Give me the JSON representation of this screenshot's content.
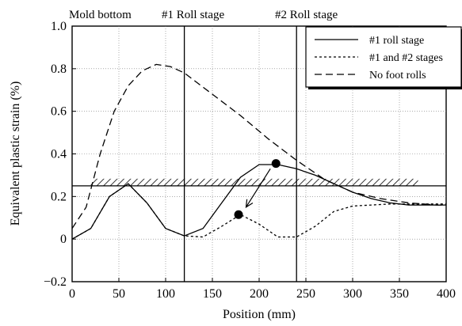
{
  "chart_data": {
    "type": "line",
    "xlabel": "Position (mm)",
    "ylabel": "Equivalent plastic strain (%)",
    "xlim": [
      0,
      400
    ],
    "ylim": [
      -0.2,
      1.0
    ],
    "x_ticks": [
      0,
      50,
      100,
      150,
      200,
      250,
      300,
      350,
      400
    ],
    "y_ticks": [
      -0.2,
      0,
      0.2,
      0.4,
      0.6,
      0.8,
      1.0
    ],
    "x_tick_labels": [
      "0",
      "50",
      "100",
      "150",
      "200",
      "250",
      "300",
      "350",
      "400"
    ],
    "y_tick_labels": [
      "−0.2",
      "0",
      "0.2",
      "0.4",
      "0.6",
      "0.8",
      "1.0"
    ],
    "grid": true,
    "legend_position": "top-right",
    "stage_markers": [
      {
        "label": "Mold bottom",
        "x": null
      },
      {
        "label": "#1 Roll stage",
        "x": 120
      },
      {
        "label": "#2 Roll stage",
        "x": 240
      }
    ],
    "threshold": {
      "y": 0.25,
      "x_range": [
        20,
        370
      ]
    },
    "series": [
      {
        "name": "#1 roll stage",
        "style": "solid",
        "x": [
          0,
          20,
          40,
          60,
          80,
          100,
          120,
          140,
          160,
          180,
          200,
          220,
          240,
          260,
          280,
          300,
          320,
          340,
          360,
          380,
          400
        ],
        "y": [
          0,
          0.05,
          0.2,
          0.26,
          0.17,
          0.05,
          0.015,
          0.05,
          0.17,
          0.29,
          0.35,
          0.35,
          0.33,
          0.3,
          0.26,
          0.22,
          0.19,
          0.17,
          0.16,
          0.16,
          0.16
        ]
      },
      {
        "name": "#1 and #2 stages",
        "style": "dotted",
        "x": [
          0,
          20,
          40,
          60,
          80,
          100,
          120,
          140,
          160,
          180,
          200,
          220,
          240,
          260,
          280,
          300,
          320,
          340,
          360,
          380,
          400
        ],
        "y": [
          0,
          0.05,
          0.2,
          0.26,
          0.17,
          0.05,
          0.015,
          0.01,
          0.06,
          0.115,
          0.07,
          0.01,
          0.01,
          0.06,
          0.13,
          0.155,
          0.16,
          0.165,
          0.165,
          0.165,
          0.165
        ]
      },
      {
        "name": "No foot rolls",
        "style": "dashed",
        "x": [
          0,
          15,
          30,
          45,
          60,
          75,
          90,
          105,
          120,
          150,
          180,
          210,
          240,
          270,
          300,
          330,
          360,
          390,
          400
        ],
        "y": [
          0.05,
          0.15,
          0.4,
          0.6,
          0.72,
          0.79,
          0.82,
          0.81,
          0.78,
          0.68,
          0.58,
          0.47,
          0.37,
          0.28,
          0.22,
          0.19,
          0.17,
          0.16,
          0.16
        ]
      }
    ],
    "markers": [
      {
        "x": 218,
        "y": 0.355
      },
      {
        "x": 178,
        "y": 0.115
      }
    ],
    "arrow": {
      "from": [
        212,
        0.33
      ],
      "to": [
        186,
        0.15
      ]
    }
  }
}
